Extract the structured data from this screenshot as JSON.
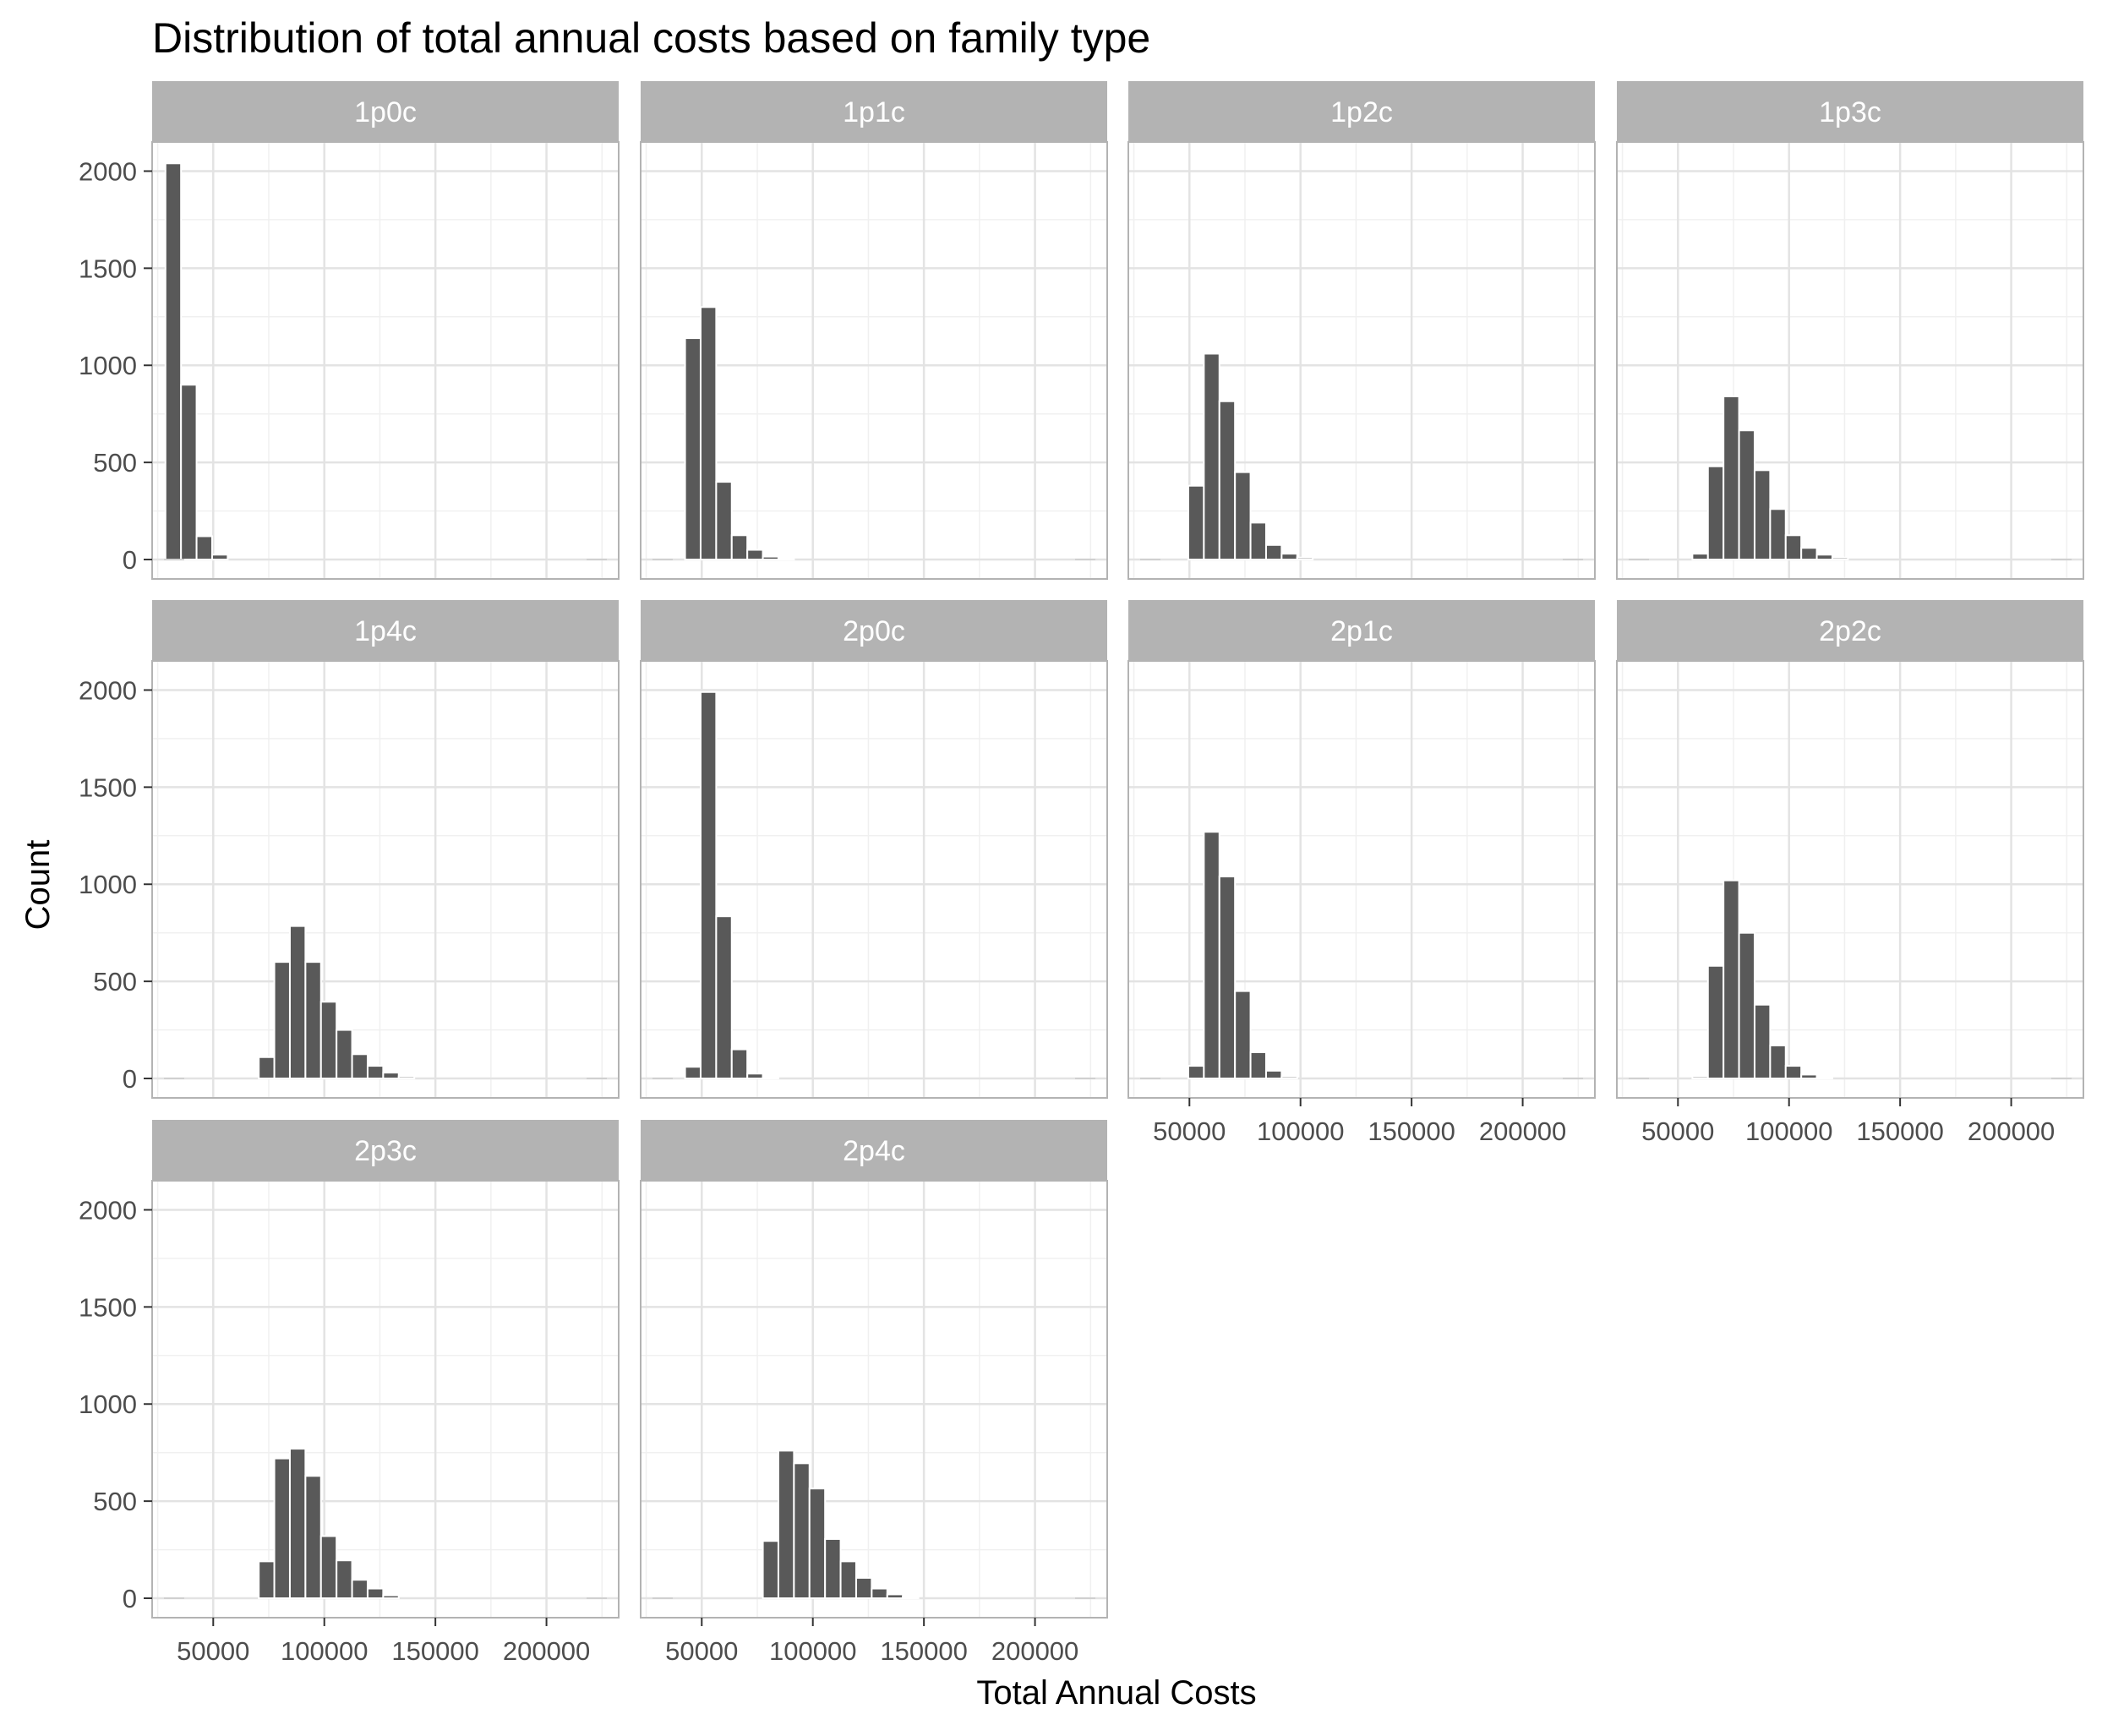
{
  "chart_data": {
    "type": "bar",
    "title": "Distribution of total annual costs based on family type",
    "xlabel": "Total Annual Costs",
    "ylabel": "Count",
    "xlim": [
      22500,
      232500
    ],
    "ylim": [
      -100,
      2150
    ],
    "x_ticks": [
      50000,
      100000,
      150000,
      200000
    ],
    "y_ticks": [
      0,
      500,
      1000,
      1500,
      2000
    ],
    "bin_width": 7000,
    "bar_color": "#595959",
    "strip_color": "#b3b3b3",
    "strip_text_color": "#ffffff",
    "grid": true,
    "panels": [
      {
        "name": "1p0c",
        "bins": [
          {
            "x": 32000,
            "count": 2040
          },
          {
            "x": 39000,
            "count": 900
          },
          {
            "x": 46000,
            "count": 120
          },
          {
            "x": 53000,
            "count": 25
          }
        ]
      },
      {
        "name": "1p1c",
        "bins": [
          {
            "x": 46000,
            "count": 1140
          },
          {
            "x": 53000,
            "count": 1300
          },
          {
            "x": 60000,
            "count": 400
          },
          {
            "x": 67000,
            "count": 125
          },
          {
            "x": 74000,
            "count": 50
          },
          {
            "x": 81000,
            "count": 15
          },
          {
            "x": 88000,
            "count": 5
          }
        ]
      },
      {
        "name": "1p2c",
        "bins": [
          {
            "x": 53000,
            "count": 380
          },
          {
            "x": 60000,
            "count": 1060
          },
          {
            "x": 67000,
            "count": 815
          },
          {
            "x": 74000,
            "count": 450
          },
          {
            "x": 81000,
            "count": 190
          },
          {
            "x": 88000,
            "count": 75
          },
          {
            "x": 95000,
            "count": 30
          },
          {
            "x": 102000,
            "count": 10
          }
        ]
      },
      {
        "name": "1p3c",
        "bins": [
          {
            "x": 60000,
            "count": 30
          },
          {
            "x": 67000,
            "count": 480
          },
          {
            "x": 74000,
            "count": 840
          },
          {
            "x": 81000,
            "count": 665
          },
          {
            "x": 88000,
            "count": 460
          },
          {
            "x": 95000,
            "count": 260
          },
          {
            "x": 102000,
            "count": 125
          },
          {
            "x": 109000,
            "count": 60
          },
          {
            "x": 116000,
            "count": 25
          },
          {
            "x": 123000,
            "count": 10
          }
        ]
      },
      {
        "name": "1p4c",
        "bins": [
          {
            "x": 74000,
            "count": 110
          },
          {
            "x": 81000,
            "count": 600
          },
          {
            "x": 88000,
            "count": 785
          },
          {
            "x": 95000,
            "count": 600
          },
          {
            "x": 102000,
            "count": 395
          },
          {
            "x": 109000,
            "count": 250
          },
          {
            "x": 116000,
            "count": 125
          },
          {
            "x": 123000,
            "count": 65
          },
          {
            "x": 130000,
            "count": 30
          },
          {
            "x": 137000,
            "count": 10
          }
        ]
      },
      {
        "name": "2p0c",
        "bins": [
          {
            "x": 46000,
            "count": 60
          },
          {
            "x": 53000,
            "count": 1990
          },
          {
            "x": 60000,
            "count": 835
          },
          {
            "x": 67000,
            "count": 150
          },
          {
            "x": 74000,
            "count": 25
          },
          {
            "x": 81000,
            "count": 5
          }
        ]
      },
      {
        "name": "2p1c",
        "bins": [
          {
            "x": 53000,
            "count": 65
          },
          {
            "x": 60000,
            "count": 1270
          },
          {
            "x": 67000,
            "count": 1040
          },
          {
            "x": 74000,
            "count": 450
          },
          {
            "x": 81000,
            "count": 135
          },
          {
            "x": 88000,
            "count": 40
          },
          {
            "x": 95000,
            "count": 10
          }
        ]
      },
      {
        "name": "2p2c",
        "bins": [
          {
            "x": 60000,
            "count": 10
          },
          {
            "x": 67000,
            "count": 580
          },
          {
            "x": 74000,
            "count": 1020
          },
          {
            "x": 81000,
            "count": 750
          },
          {
            "x": 88000,
            "count": 380
          },
          {
            "x": 95000,
            "count": 170
          },
          {
            "x": 102000,
            "count": 65
          },
          {
            "x": 109000,
            "count": 20
          },
          {
            "x": 116000,
            "count": 5
          }
        ]
      },
      {
        "name": "2p3c",
        "bins": [
          {
            "x": 74000,
            "count": 190
          },
          {
            "x": 81000,
            "count": 720
          },
          {
            "x": 88000,
            "count": 770
          },
          {
            "x": 95000,
            "count": 630
          },
          {
            "x": 102000,
            "count": 320
          },
          {
            "x": 109000,
            "count": 195
          },
          {
            "x": 116000,
            "count": 95
          },
          {
            "x": 123000,
            "count": 50
          },
          {
            "x": 130000,
            "count": 15
          }
        ]
      },
      {
        "name": "2p4c",
        "bins": [
          {
            "x": 81000,
            "count": 295
          },
          {
            "x": 88000,
            "count": 760
          },
          {
            "x": 95000,
            "count": 695
          },
          {
            "x": 102000,
            "count": 565
          },
          {
            "x": 109000,
            "count": 305
          },
          {
            "x": 116000,
            "count": 190
          },
          {
            "x": 123000,
            "count": 105
          },
          {
            "x": 130000,
            "count": 50
          },
          {
            "x": 137000,
            "count": 20
          },
          {
            "x": 144000,
            "count": 5
          }
        ]
      }
    ]
  }
}
